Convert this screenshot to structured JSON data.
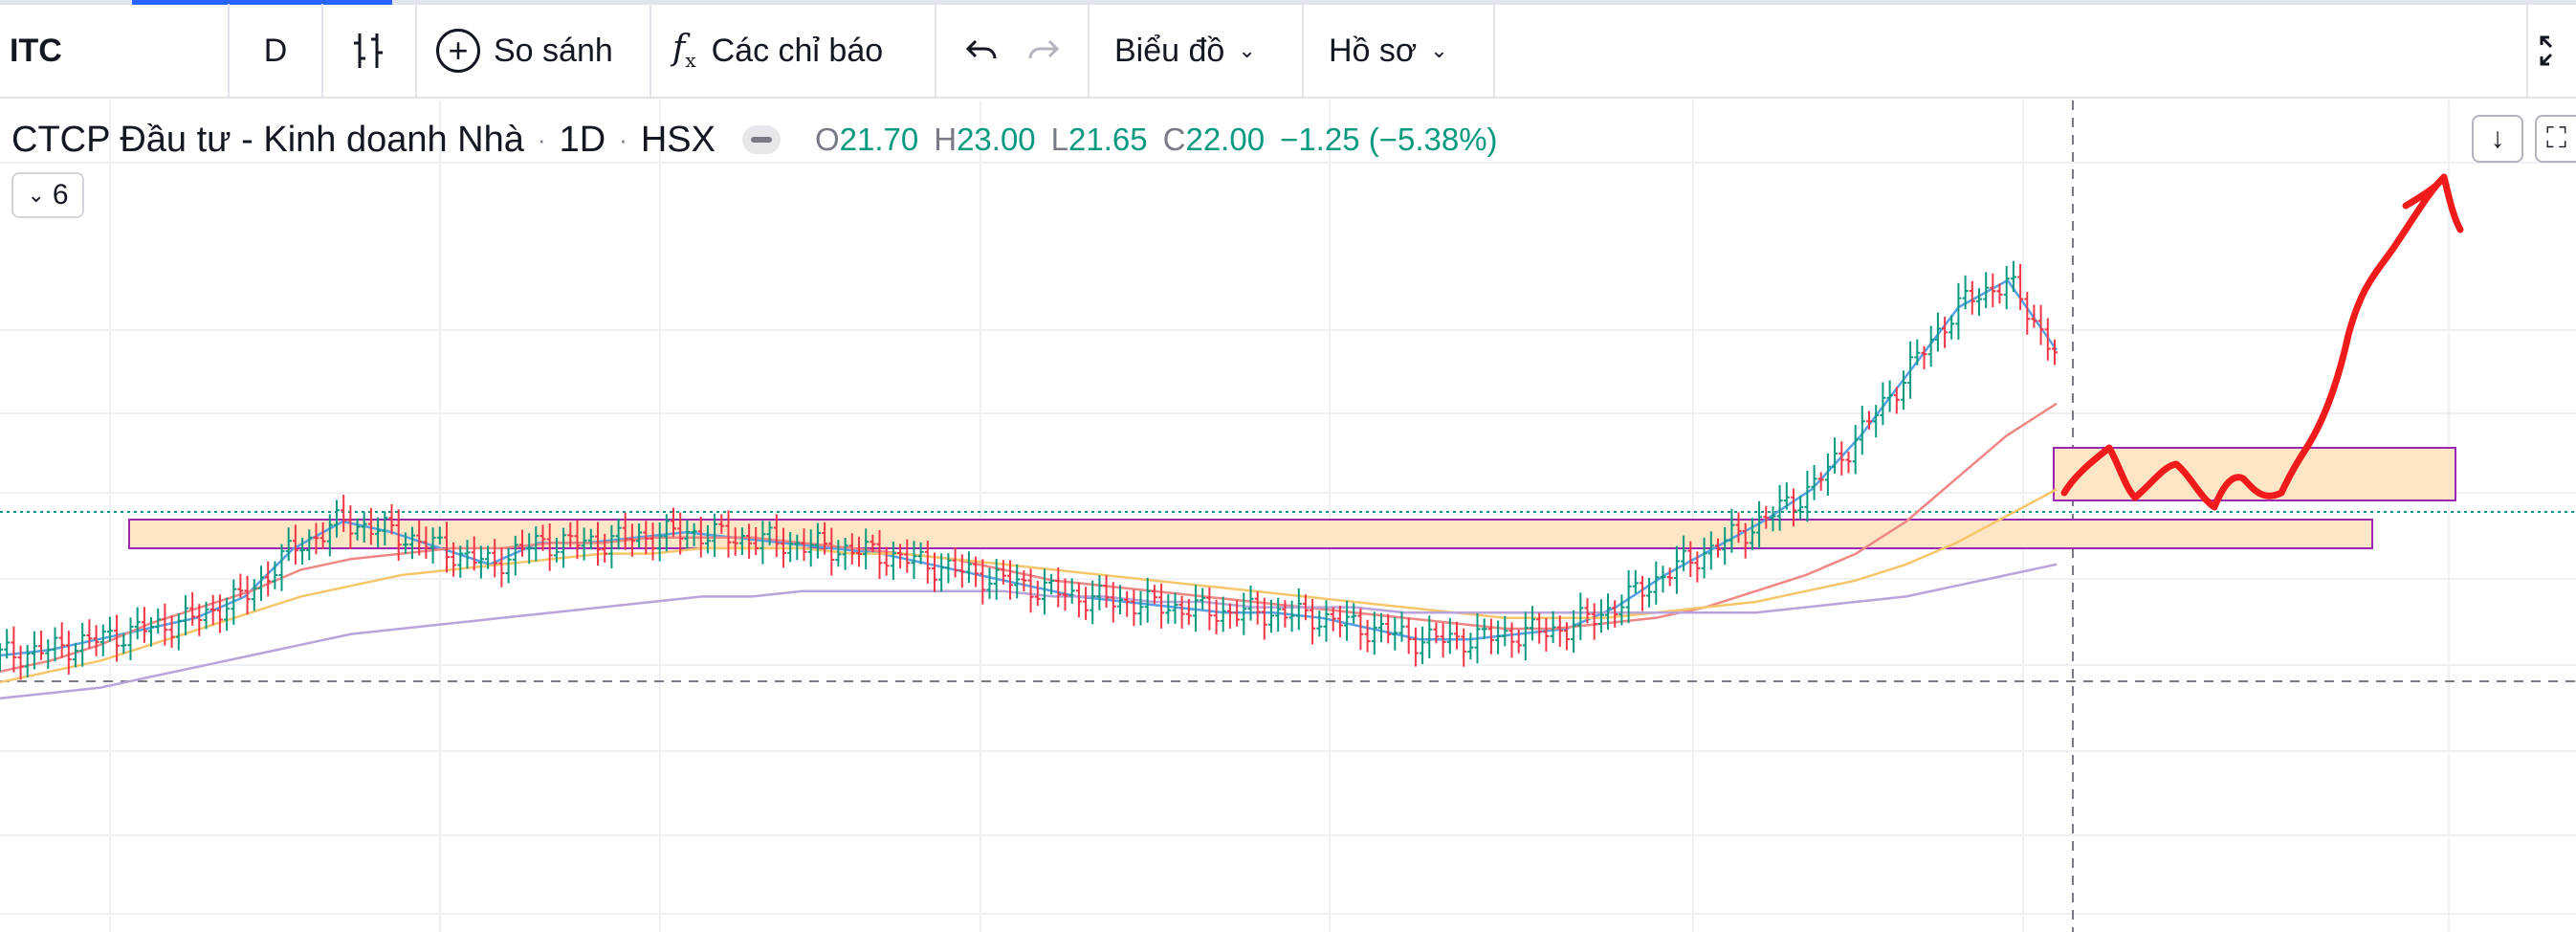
{
  "toolbar": {
    "symbol": "ITC",
    "interval": "D",
    "compare_label": "So sánh",
    "indicators_label": "Các chỉ báo",
    "chart_type_label": "Biểu đồ",
    "layout_label": "Hồ sơ",
    "icons": [
      "bar-style-icon",
      "plus-circle-icon",
      "fx-icon",
      "undo-icon",
      "redo-icon",
      "chevron-down-icon",
      "fullscreen-icon"
    ]
  },
  "legend": {
    "name": "CTCP Đầu tư - Kinh doanh Nhà",
    "sep1": "·",
    "interval": "1D",
    "sep2": "·",
    "exchange": "HSX",
    "o_label": "O",
    "o_value": "21.70",
    "h_label": "H",
    "h_value": "23.00",
    "l_label": "L",
    "l_value": "21.65",
    "c_label": "C",
    "c_value": "22.00",
    "change": "−1.25 (−5.38%)",
    "up_color": "#089981",
    "down_color": "#f23645"
  },
  "indicator_toggle": {
    "count": "6"
  },
  "chart_data": {
    "type": "line",
    "series": [
      {
        "values": [
          25,
          26,
          28,
          30,
          32,
          36,
          45,
          50,
          48,
          45,
          42,
          46,
          46,
          47,
          48,
          47,
          46,
          45,
          44,
          42,
          40,
          38,
          36,
          35,
          34,
          33,
          33,
          32,
          30,
          28,
          28,
          29,
          30,
          34,
          40,
          45,
          50,
          56,
          66,
          78,
          90,
          95,
          82
        ]
      },
      {
        "values": [
          22,
          24,
          27,
          31,
          34,
          37,
          41,
          43,
          44,
          45,
          45,
          46,
          46,
          47,
          47,
          47,
          46,
          45,
          44,
          43,
          41,
          39,
          38,
          37,
          36,
          35,
          34,
          33,
          32,
          31,
          30,
          30,
          31,
          32,
          34,
          37,
          40,
          44,
          50,
          58,
          66,
          72
        ]
      },
      {
        "values": [
          20,
          22,
          24,
          27,
          30,
          33,
          36,
          38,
          40,
          41,
          42,
          43,
          44,
          44,
          45,
          45,
          45,
          44,
          44,
          43,
          42,
          41,
          40,
          39,
          38,
          37,
          36,
          35,
          34,
          33,
          32,
          32,
          32,
          33,
          34,
          35,
          37,
          39,
          42,
          46,
          51,
          56
        ]
      },
      {
        "values": [
          17,
          18,
          19,
          21,
          23,
          25,
          27,
          29,
          30,
          31,
          32,
          33,
          34,
          35,
          36,
          36,
          37,
          37,
          37,
          37,
          37,
          36,
          36,
          35,
          35,
          34,
          34,
          34,
          33,
          33,
          33,
          33,
          33,
          33,
          33,
          33,
          34,
          35,
          36,
          38,
          40,
          42
        ]
      }
    ],
    "colors": [
      "#5aa0e6",
      "#ef8785",
      "#f7c66b",
      "#b8a4da"
    ],
    "grid": true,
    "drawings": [
      "support-zone",
      "resistance-zone",
      "crosshair",
      "hand-drawn-projection-arrow"
    ]
  }
}
